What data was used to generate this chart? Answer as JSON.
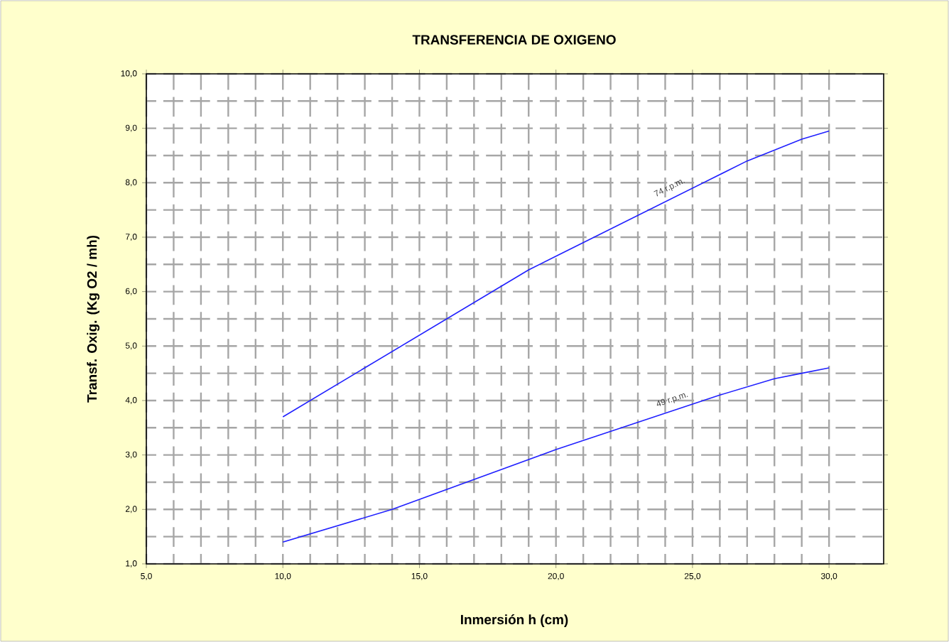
{
  "chart_data": {
    "type": "line",
    "title": "TRANSFERENCIA DE OXIGENO",
    "xlabel": "Inmersión h (cm)",
    "ylabel": "Transf. Oxig.  (Kg O2 / mh)",
    "xlim": [
      5,
      32
    ],
    "ylim": [
      1,
      10
    ],
    "xticks": [
      {
        "value": 5,
        "label": "5,0"
      },
      {
        "value": 10,
        "label": "10,0"
      },
      {
        "value": 15,
        "label": "15,0"
      },
      {
        "value": 20,
        "label": "20,0"
      },
      {
        "value": 25,
        "label": "25,0"
      },
      {
        "value": 30,
        "label": "30,0"
      }
    ],
    "yticks": [
      {
        "value": 1,
        "label": "1,0"
      },
      {
        "value": 2,
        "label": "2,0"
      },
      {
        "value": 3,
        "label": "3,0"
      },
      {
        "value": 4,
        "label": "4,0"
      },
      {
        "value": 5,
        "label": "5,0"
      },
      {
        "value": 6,
        "label": "6,0"
      },
      {
        "value": 7,
        "label": "7,0"
      },
      {
        "value": 8,
        "label": "8,0"
      },
      {
        "value": 9,
        "label": "9,0"
      },
      {
        "value": 10,
        "label": "10,0"
      }
    ],
    "grid": true,
    "legend": false,
    "marker": "none",
    "line_style": "solid",
    "series": [
      {
        "name": "74 r.p.m.",
        "color": "#2020ff",
        "x": [
          10,
          19,
          20,
          27,
          29,
          30
        ],
        "values": [
          3.7,
          6.4,
          6.65,
          8.4,
          8.8,
          8.95
        ]
      },
      {
        "name": "49 r.p.m.",
        "color": "#2020ff",
        "x": [
          10,
          14,
          20,
          26,
          28,
          29,
          30
        ],
        "values": [
          1.4,
          2.0,
          3.1,
          4.1,
          4.4,
          4.5,
          4.6
        ]
      }
    ]
  }
}
